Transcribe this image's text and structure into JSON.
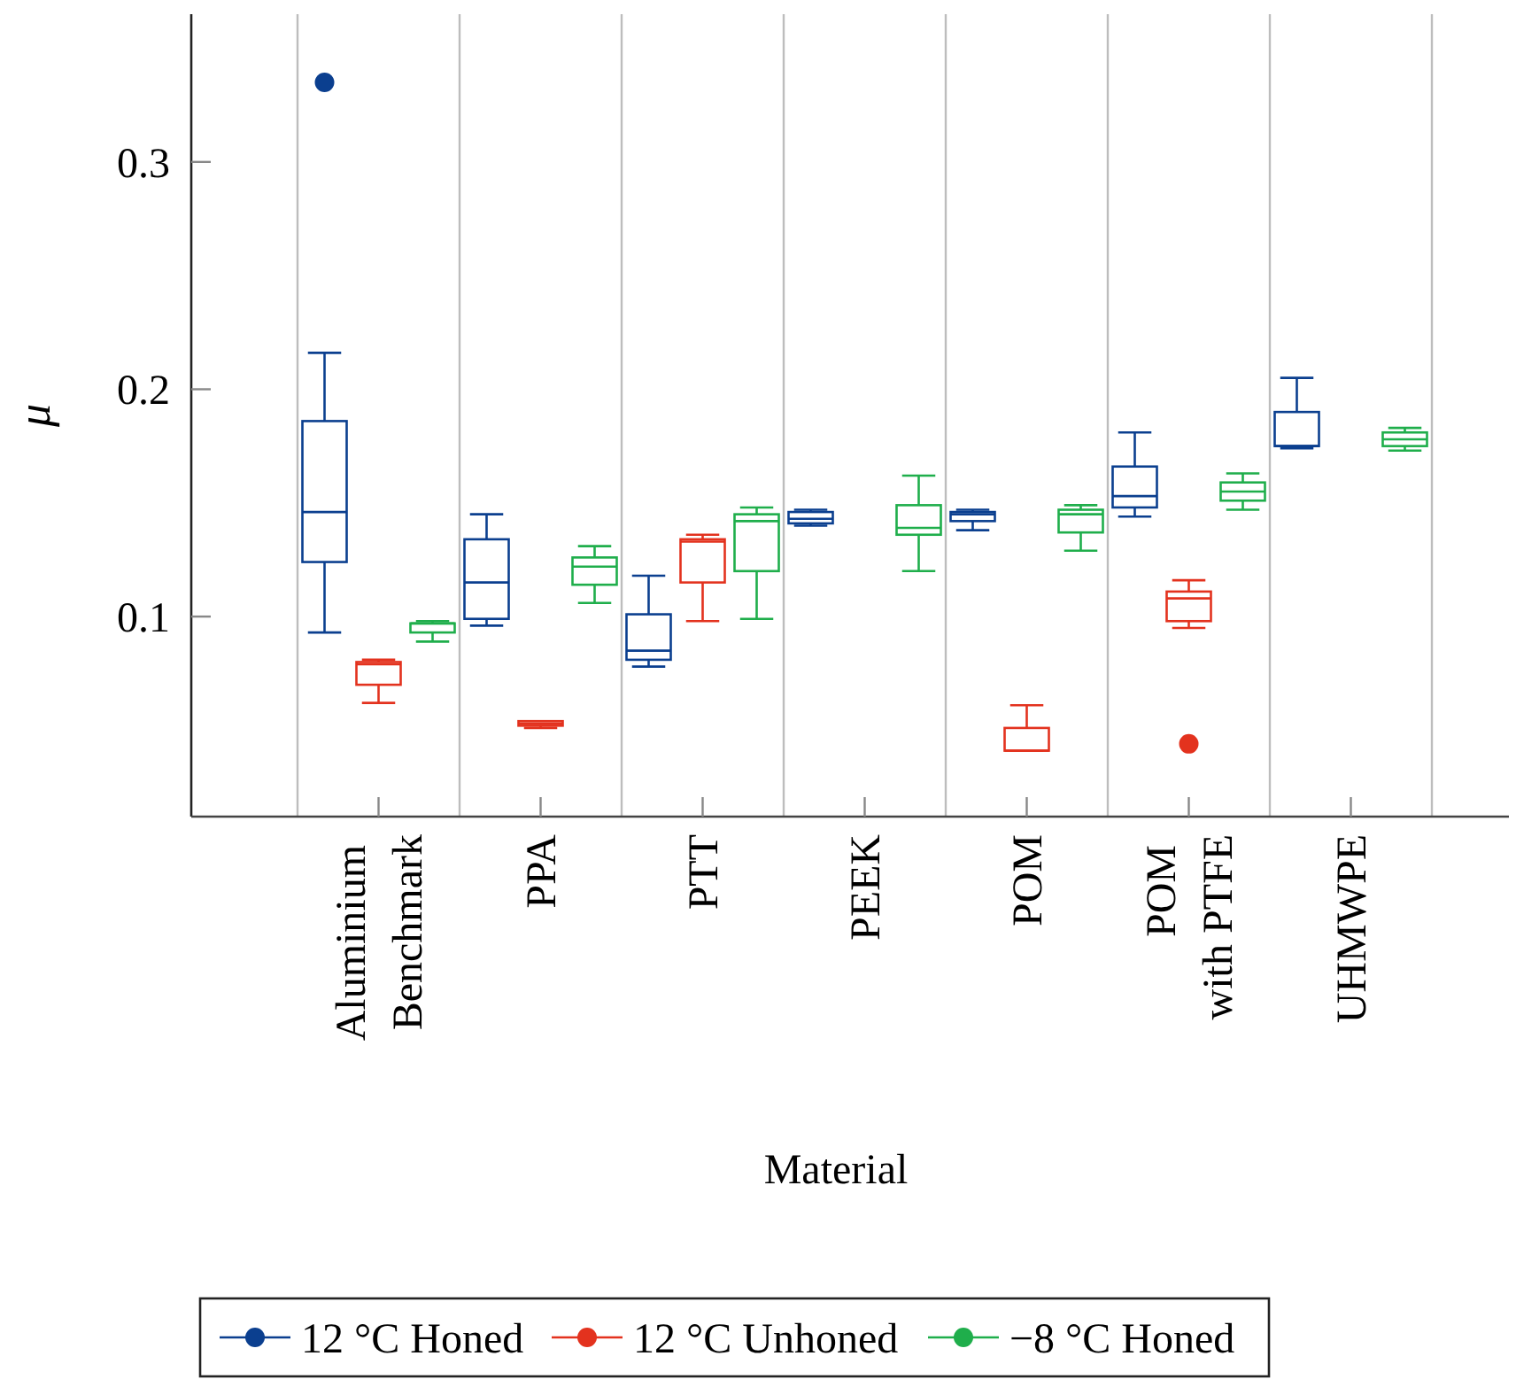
{
  "chart_data": {
    "type": "box",
    "xlabel": "Material",
    "ylabel": "μ",
    "categories": [
      "Aluminium\nBenchmark",
      "PPA",
      "PTT",
      "PEEK",
      "POM",
      "POM\nwith PTFE",
      "UHMWPE"
    ],
    "ylim": [
      0.012,
      0.365
    ],
    "yticks": [
      0.1,
      0.2,
      0.3
    ],
    "grid": "x",
    "legend": "bottom",
    "marker": "circle",
    "series": [
      {
        "name": "12 °C Honed",
        "color": "#0b3f8f",
        "boxes": [
          {
            "low": 0.093,
            "q1": 0.124,
            "median": 0.146,
            "q3": 0.186,
            "high": 0.216,
            "outliers": [
              0.335
            ]
          },
          {
            "low": 0.096,
            "q1": 0.099,
            "median": 0.115,
            "q3": 0.134,
            "high": 0.145
          },
          {
            "low": 0.078,
            "q1": 0.081,
            "median": 0.085,
            "q3": 0.101,
            "high": 0.118
          },
          {
            "low": 0.14,
            "q1": 0.141,
            "median": 0.143,
            "q3": 0.146,
            "high": 0.147
          },
          {
            "low": 0.138,
            "q1": 0.142,
            "median": 0.145,
            "q3": 0.146,
            "high": 0.147
          },
          {
            "low": 0.144,
            "q1": 0.148,
            "median": 0.153,
            "q3": 0.166,
            "high": 0.181
          },
          {
            "low": 0.174,
            "q1": 0.175,
            "median": 0.175,
            "q3": 0.19,
            "high": 0.205
          }
        ]
      },
      {
        "name": "12 °C Unhoned",
        "color": "#e3321e",
        "boxes": [
          {
            "low": 0.062,
            "q1": 0.07,
            "median": 0.079,
            "q3": 0.08,
            "high": 0.081
          },
          {
            "low": 0.051,
            "q1": 0.052,
            "median": 0.053,
            "q3": 0.054,
            "high": 0.054
          },
          {
            "low": 0.098,
            "q1": 0.115,
            "median": 0.133,
            "q3": 0.134,
            "high": 0.136
          },
          null,
          {
            "low": 0.041,
            "q1": 0.041,
            "median": 0.041,
            "q3": 0.051,
            "high": 0.061
          },
          {
            "low": 0.095,
            "q1": 0.098,
            "median": 0.108,
            "q3": 0.111,
            "high": 0.116,
            "outliers": [
              0.044
            ]
          },
          null
        ]
      },
      {
        "name": "−8 °C Honed",
        "color": "#1fae4b",
        "boxes": [
          {
            "low": 0.089,
            "q1": 0.093,
            "median": 0.097,
            "q3": 0.097,
            "high": 0.098
          },
          {
            "low": 0.106,
            "q1": 0.114,
            "median": 0.122,
            "q3": 0.126,
            "high": 0.131
          },
          {
            "low": 0.099,
            "q1": 0.12,
            "median": 0.142,
            "q3": 0.145,
            "high": 0.148
          },
          {
            "low": 0.12,
            "q1": 0.136,
            "median": 0.139,
            "q3": 0.149,
            "high": 0.162
          },
          {
            "low": 0.129,
            "q1": 0.137,
            "median": 0.145,
            "q3": 0.147,
            "high": 0.149
          },
          {
            "low": 0.147,
            "q1": 0.151,
            "median": 0.155,
            "q3": 0.159,
            "high": 0.163
          },
          {
            "low": 0.173,
            "q1": 0.175,
            "median": 0.178,
            "q3": 0.181,
            "high": 0.183
          }
        ]
      }
    ]
  }
}
